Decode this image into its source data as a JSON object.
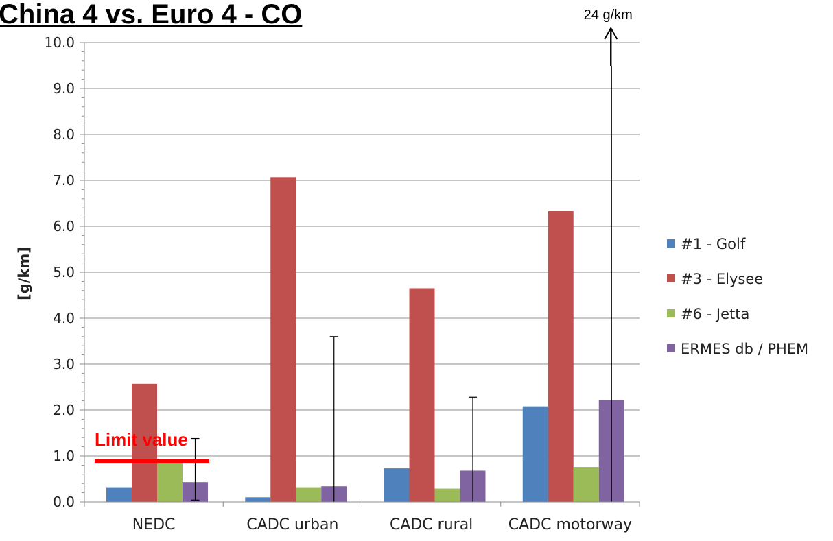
{
  "title": "China 4 vs. Euro 4 - CO",
  "chart_data": {
    "type": "bar",
    "categories": [
      "NEDC",
      "CADC urban",
      "CADC rural",
      "CADC motorway"
    ],
    "ylabel": "[g/km]",
    "ylim": [
      0,
      10
    ],
    "yticks": [
      "0.0",
      "1.0",
      "2.0",
      "3.0",
      "4.0",
      "5.0",
      "6.0",
      "7.0",
      "8.0",
      "9.0",
      "10.0"
    ],
    "grid": true,
    "legend_position": "right",
    "series": [
      {
        "name": "#1 - Golf",
        "color": "#4f81bd",
        "values": [
          0.32,
          0.1,
          0.73,
          2.08
        ]
      },
      {
        "name": "#3 - Elysee",
        "color": "#c0504d",
        "values": [
          2.57,
          7.07,
          4.65,
          6.33
        ]
      },
      {
        "name": "#6 - Jetta",
        "color": "#9bbb59",
        "values": [
          0.88,
          0.32,
          0.29,
          0.76
        ]
      },
      {
        "name": "ERMES db / PHEM",
        "color": "#8064a2",
        "values": [
          0.43,
          0.34,
          0.68,
          2.21
        ],
        "error_bars": [
          [
            0.04,
            1.38
          ],
          [
            0,
            3.6
          ],
          [
            0,
            2.28
          ],
          [
            0,
            24
          ]
        ]
      }
    ],
    "limit_value": {
      "label": "Limit value",
      "value": 1.0,
      "color": "#ff0000"
    },
    "annotations": [
      {
        "text": "24 g/km",
        "category": "CADC motorway",
        "value": 24
      }
    ]
  }
}
